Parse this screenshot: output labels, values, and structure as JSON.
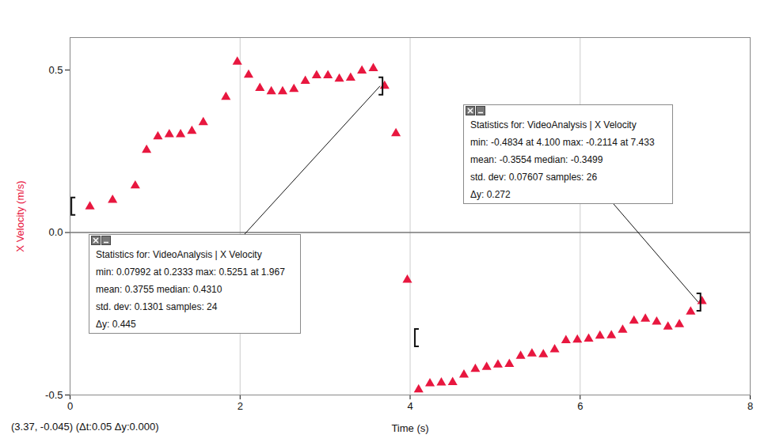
{
  "chart_data": {
    "type": "scatter",
    "xlabel": "Time (s)",
    "ylabel": "X Velocity (m/s)",
    "x": [
      0.2333,
      0.5,
      0.7667,
      0.9,
      1.033,
      1.167,
      1.3,
      1.433,
      1.567,
      1.833,
      1.967,
      2.1,
      2.233,
      2.367,
      2.5,
      2.633,
      2.767,
      2.9,
      3.033,
      3.167,
      3.3,
      3.433,
      3.567,
      3.7,
      3.833,
      3.967,
      4.1,
      4.233,
      4.367,
      4.5,
      4.633,
      4.767,
      4.9,
      5.033,
      5.167,
      5.3,
      5.433,
      5.567,
      5.7,
      5.833,
      5.967,
      6.1,
      6.233,
      6.367,
      6.5,
      6.633,
      6.767,
      6.9,
      7.033,
      7.167,
      7.3,
      7.433
    ],
    "values": [
      0.07992,
      0.1,
      0.144,
      0.254,
      0.295,
      0.302,
      0.302,
      0.312,
      0.339,
      0.417,
      0.5251,
      0.485,
      0.444,
      0.434,
      0.434,
      0.441,
      0.466,
      0.483,
      0.483,
      0.473,
      0.476,
      0.498,
      0.505,
      0.451,
      0.305,
      -0.146,
      -0.4834,
      -0.465,
      -0.462,
      -0.461,
      -0.438,
      -0.42,
      -0.414,
      -0.407,
      -0.405,
      -0.38,
      -0.373,
      -0.375,
      -0.36,
      -0.332,
      -0.33,
      -0.327,
      -0.318,
      -0.317,
      -0.3,
      -0.272,
      -0.266,
      -0.275,
      -0.29,
      -0.283,
      -0.244,
      -0.2114
    ],
    "color": "#e8173f",
    "marker": "triangle",
    "xlim": [
      0,
      8
    ],
    "ylim": [
      -0.5,
      0.6
    ],
    "xticks": [
      0,
      2,
      4,
      6,
      8
    ],
    "yticks": [
      -0.5,
      {
        "value": 0,
        "label": "0.0"
      },
      0.5
    ],
    "grid": "x",
    "annotations": [
      {
        "text": [
          "Statistics for: VideoAnalysis | X Velocity",
          "min: 0.07992 at 0.2333 max: 0.5251 at 1.967",
          "mean: 0.3755 median: 0.4310",
          "std. dev: 0.1301 samples: 24",
          "Δy: 0.445"
        ],
        "bracket": [
          [
            0.02,
            0.08
          ],
          [
            3.68,
            0.45
          ]
        ]
      },
      {
        "text": [
          "Statistics for: VideoAnalysis | X Velocity",
          "min: -0.4834 at 4.100 max: -0.2114 at 7.433",
          "mean: -0.3554 median: -0.3499",
          "std. dev: 0.07607 samples: 26",
          "Δy: 0.272"
        ],
        "bracket": [
          [
            4.06,
            -0.325
          ],
          [
            7.42,
            -0.215
          ]
        ]
      }
    ],
    "caption": "(3.37, -0.045) (Δt:0.05 Δy:0.000)"
  }
}
